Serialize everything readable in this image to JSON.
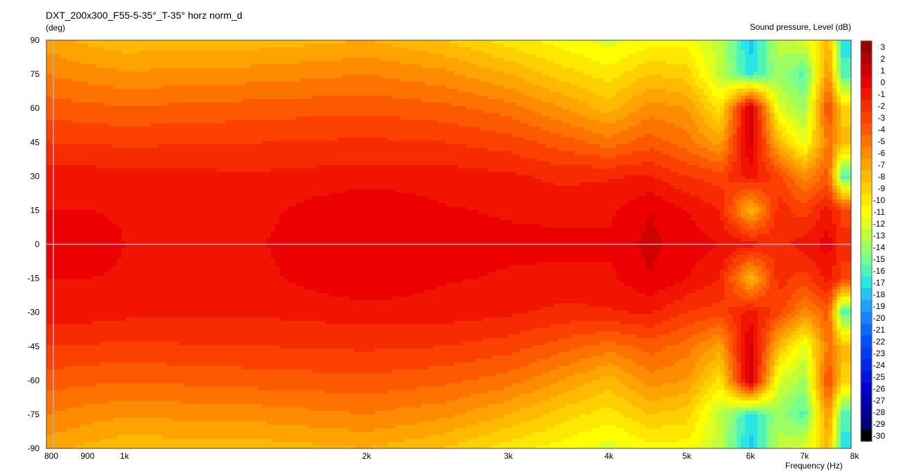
{
  "chart_data": {
    "type": "heatmap",
    "title": "DXT_200x300_F55-5-35°_T-35° horz norm_d",
    "ylabel": "(deg)",
    "xlabel": "Frequency  (Hz)",
    "colorbar_label": "Sound pressure, Level  (dB)",
    "x_scale": "log",
    "xlim": [
      800,
      8000
    ],
    "ylim": [
      -90,
      90
    ],
    "x_ticks": [
      {
        "value": 800,
        "label": "800"
      },
      {
        "value": 900,
        "label": "900"
      },
      {
        "value": 1000,
        "label": "1k"
      },
      {
        "value": 2000,
        "label": "2k"
      },
      {
        "value": 3000,
        "label": "3k"
      },
      {
        "value": 4000,
        "label": "4k"
      },
      {
        "value": 5000,
        "label": "5k"
      },
      {
        "value": 6000,
        "label": "6k"
      },
      {
        "value": 7000,
        "label": "7k"
      },
      {
        "value": 8000,
        "label": "8k"
      }
    ],
    "y_ticks": [
      90,
      75,
      60,
      45,
      30,
      15,
      0,
      -15,
      -30,
      -45,
      -60,
      -75,
      -90
    ],
    "colorbar_levels": [
      3,
      2,
      1,
      0,
      -1,
      -2,
      -3,
      -4,
      -5,
      -6,
      -7,
      -8,
      -9,
      -10,
      -11,
      -12,
      -13,
      -14,
      -15,
      -16,
      -17,
      -18,
      -19,
      -20,
      -21,
      -22,
      -23,
      -24,
      -25,
      -26,
      -27,
      -28,
      -29,
      -30
    ],
    "frequencies": [
      800,
      900,
      1000,
      1500,
      2000,
      2500,
      3000,
      3500,
      4000,
      4500,
      5000,
      5500,
      6000,
      6500,
      7000,
      7500,
      7800
    ],
    "angles": [
      0,
      15,
      30,
      45,
      60,
      75,
      90
    ],
    "levels_db": [
      [
        0,
        0,
        -0.5,
        -0.5,
        0.5,
        -0.2,
        -0.3,
        -0.3,
        -0.2,
        0.8,
        0,
        -0.5,
        -1,
        -2,
        -1,
        0,
        -2
      ],
      [
        -0.5,
        -0.5,
        -0.6,
        -0.7,
        0.5,
        -0.4,
        -0.6,
        -0.7,
        -0.8,
        0.5,
        -0.5,
        -1.5,
        -8,
        -2,
        -3,
        -1,
        -3
      ],
      [
        -1,
        -1,
        -1.2,
        -1.3,
        -1,
        -1,
        -1.3,
        -1.8,
        -1.6,
        -1.4,
        -2.5,
        -3,
        -1,
        -3,
        -6,
        -4,
        -16
      ],
      [
        -2.5,
        -2.6,
        -2.7,
        -2.5,
        -2.3,
        -2.5,
        -3,
        -4,
        -5,
        -4,
        -5,
        -7,
        1,
        -8,
        -12,
        -5,
        -8
      ],
      [
        -4,
        -4.2,
        -4.4,
        -4,
        -3.8,
        -4.2,
        -5,
        -6.5,
        -8,
        -6,
        -6.5,
        -10,
        1.5,
        -12,
        -14,
        -3,
        -9
      ],
      [
        -5.5,
        -6,
        -6.3,
        -6,
        -5.5,
        -6.2,
        -7.5,
        -9,
        -10,
        -8.5,
        -9,
        -13,
        -17,
        -14,
        -16,
        -6,
        -16
      ],
      [
        -7,
        -7.8,
        -8.2,
        -8,
        -7.5,
        -8.5,
        -10,
        -11,
        -12,
        -11,
        -11,
        -13,
        -18,
        -13,
        -12,
        -8,
        -17
      ]
    ]
  }
}
